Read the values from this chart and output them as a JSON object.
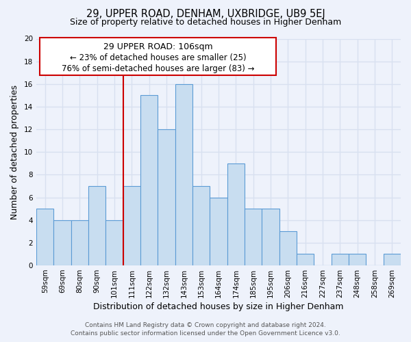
{
  "title": "29, UPPER ROAD, DENHAM, UXBRIDGE, UB9 5EJ",
  "subtitle": "Size of property relative to detached houses in Higher Denham",
  "xlabel": "Distribution of detached houses by size in Higher Denham",
  "ylabel": "Number of detached properties",
  "footer_line1": "Contains HM Land Registry data © Crown copyright and database right 2024.",
  "footer_line2": "Contains public sector information licensed under the Open Government Licence v3.0.",
  "bin_labels": [
    "59sqm",
    "69sqm",
    "80sqm",
    "90sqm",
    "101sqm",
    "111sqm",
    "122sqm",
    "132sqm",
    "143sqm",
    "153sqm",
    "164sqm",
    "174sqm",
    "185sqm",
    "195sqm",
    "206sqm",
    "216sqm",
    "227sqm",
    "237sqm",
    "248sqm",
    "258sqm",
    "269sqm"
  ],
  "bin_values": [
    5,
    4,
    4,
    7,
    4,
    7,
    15,
    12,
    16,
    7,
    6,
    9,
    5,
    5,
    3,
    1,
    0,
    1,
    1,
    0,
    1
  ],
  "bar_color": "#c8ddf0",
  "bar_edge_color": "#5b9bd5",
  "ylim": [
    0,
    20
  ],
  "yticks": [
    0,
    2,
    4,
    6,
    8,
    10,
    12,
    14,
    16,
    18,
    20
  ],
  "annotation_title": "29 UPPER ROAD: 106sqm",
  "annotation_line1": "← 23% of detached houses are smaller (25)",
  "annotation_line2": "76% of semi-detached houses are larger (83) →",
  "annotation_box_color": "#ffffff",
  "annotation_box_edge_color": "#cc0000",
  "vline_color": "#cc0000",
  "background_color": "#eef2fb",
  "grid_color": "#d8e0f0",
  "title_fontsize": 10.5,
  "subtitle_fontsize": 9,
  "axis_label_fontsize": 9,
  "tick_fontsize": 7.5,
  "annotation_title_fontsize": 9,
  "annotation_body_fontsize": 8.5,
  "footer_fontsize": 6.5
}
